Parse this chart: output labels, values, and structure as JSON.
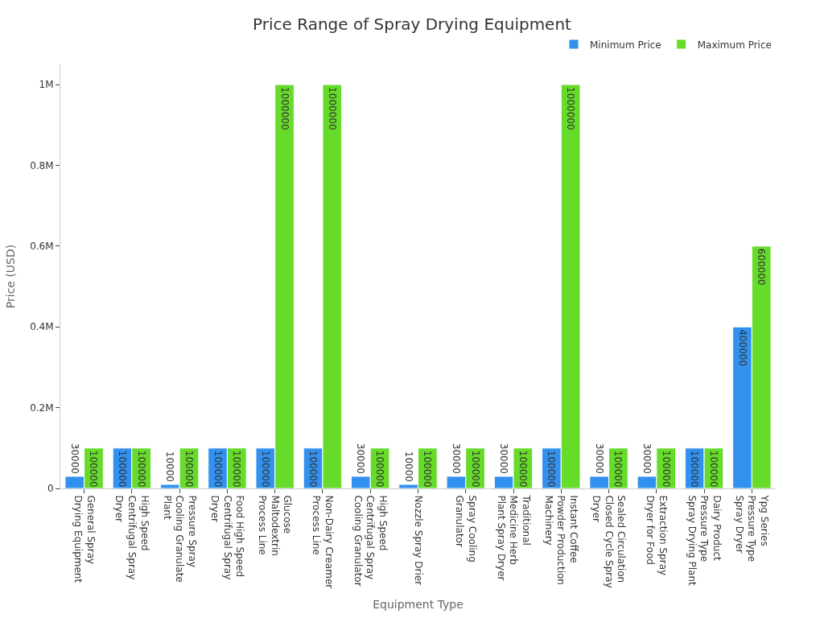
{
  "chart_data": {
    "type": "bar",
    "title": "Price Range of Spray Drying Equipment",
    "xlabel": "Equipment Type",
    "ylabel": "Price (USD)",
    "categories": [
      "General Spray Drying Equipment",
      "High Speed Centrifugal Spray Dryer",
      "Pressure Spray Cooling Granulate Plant",
      "Food High Speed Centrifugal Spray Dryer",
      "Glucose Maltodextrin Process Line",
      "Non-Dairy Creamer Process Line",
      "High Speed Centrifugal Spray Cooling Granulator",
      "Nozzle Spray Drier",
      "Spray Cooling Granulator",
      "Traditional Medicine Herb Plant Spray Dryer",
      "Instant Coffee Powder Production Machinery",
      "Sealed Circulation Closed Cycle Spray Dryer",
      "Extraction Spray Dryer for Food",
      "Dairy Product Pressure Type Spray Drying Plant",
      "Ypg Series Pressure Type Spray Dryer"
    ],
    "series": [
      {
        "name": "Minimum Price",
        "color": "#3291ee",
        "values": [
          30000,
          100000,
          10000,
          100000,
          100000,
          100000,
          30000,
          10000,
          30000,
          30000,
          100000,
          30000,
          30000,
          100000,
          400000
        ]
      },
      {
        "name": "Maximum Price",
        "color": "#66db2a",
        "values": [
          100000,
          100000,
          100000,
          100000,
          1000000,
          1000000,
          100000,
          100000,
          100000,
          100000,
          1000000,
          100000,
          100000,
          100000,
          600000
        ]
      }
    ],
    "ylim": [
      0,
      1050000
    ],
    "yticks": [
      0,
      {
        "value": 200000,
        "label": "0.2M"
      },
      {
        "value": 400000,
        "label": "0.4M"
      },
      {
        "value": 600000,
        "label": "0.6M"
      },
      {
        "value": 800000,
        "label": "0.8M"
      },
      {
        "value": 1000000,
        "label": "1M"
      }
    ],
    "data_labels": true,
    "legend": "top right"
  }
}
